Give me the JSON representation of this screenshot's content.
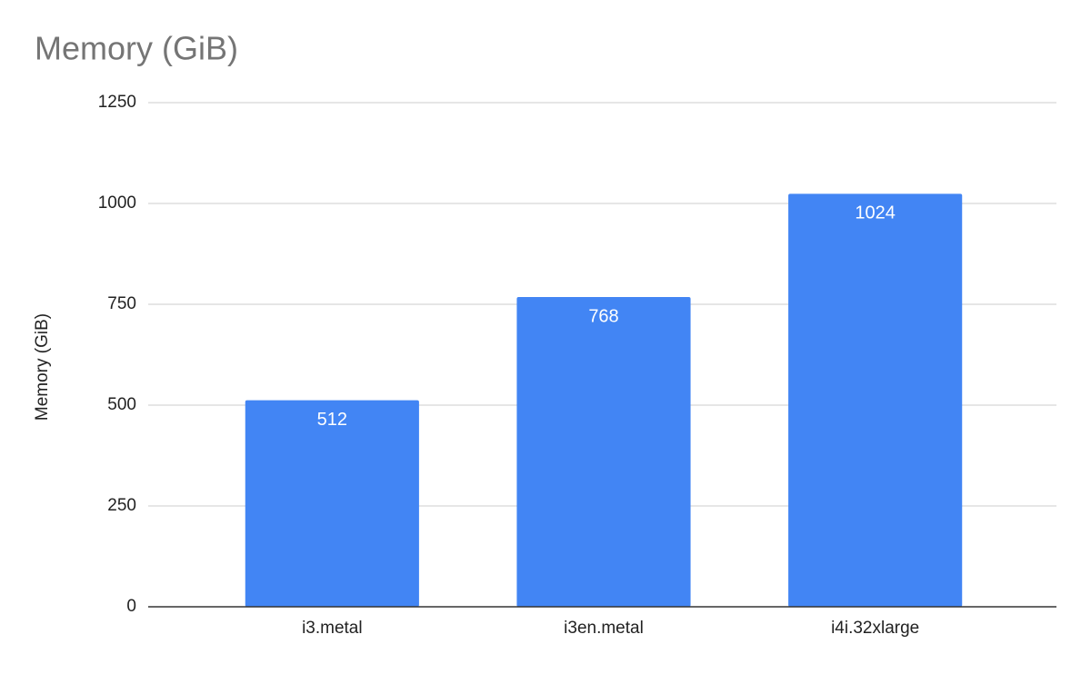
{
  "chart_data": {
    "type": "bar",
    "title": "Memory (GiB)",
    "y_label": "Memory (GiB)",
    "categories": [
      "i3.metal",
      "i3en.metal",
      "i4i.32xlarge"
    ],
    "values": [
      512,
      768,
      1024
    ],
    "color": "#4285f4",
    "ylim": [
      0,
      1250
    ],
    "yticks": [
      0,
      250,
      500,
      750,
      1000,
      1250
    ],
    "grid": true
  }
}
